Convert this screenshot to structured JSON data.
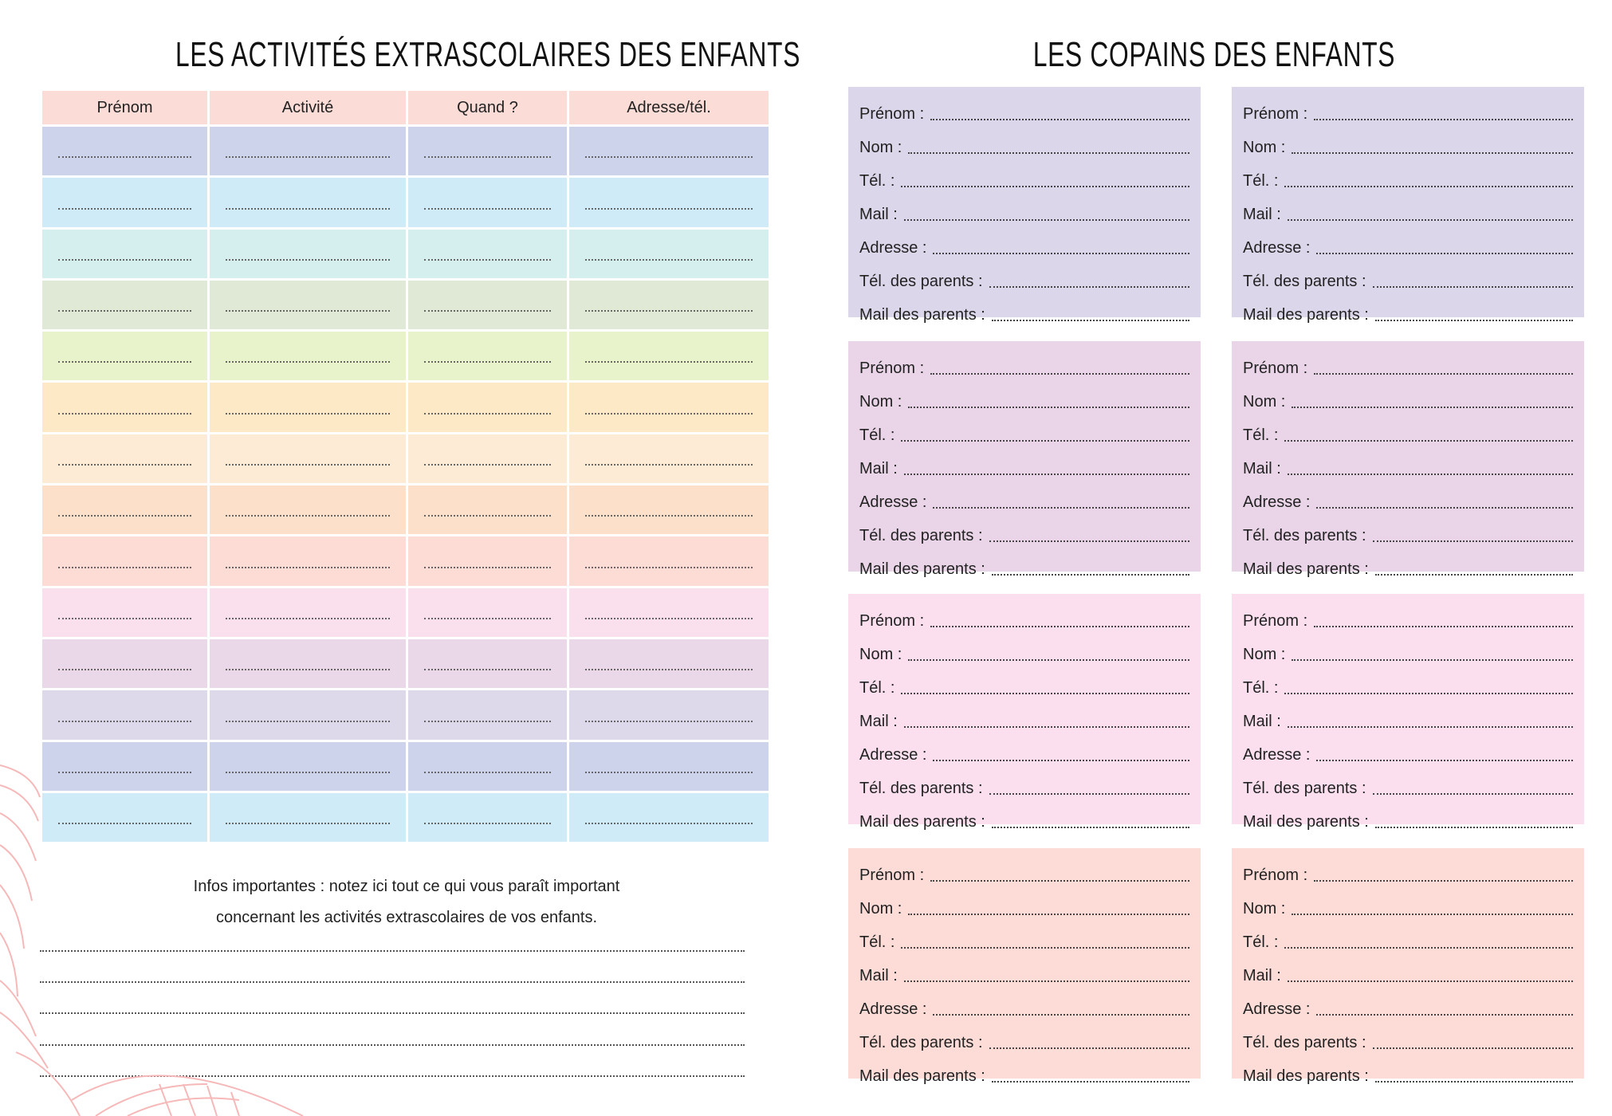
{
  "left_page": {
    "title": "LES ACTIVITÉS EXTRASCOLAIRES DES ENFANTS",
    "table": {
      "headers": [
        "Prénom",
        "Activité",
        "Quand ?",
        "Adresse/tél."
      ],
      "header_color": "#fcdcd7",
      "row_colors": [
        "#cdd3ea",
        "#d0ebf8",
        "#d5eeee",
        "#e0e9d6",
        "#e9f3cb",
        "#fde9c6",
        "#fdebd5",
        "#fde0c9",
        "#fcdcd5",
        "#fadfec",
        "#ead7e8",
        "#ddd8ea",
        "#cdd3ea",
        "#d0ebf8"
      ]
    },
    "infos_line1": "Infos importantes : notez ici tout ce qui vous paraît important",
    "infos_line2": "concernant les activités extrascolaires de vos enfants."
  },
  "right_page": {
    "title": "LES COPAINS DES ENFANTS",
    "fields": [
      "Prénom :",
      "Nom :",
      "Tél. :",
      "Mail :",
      "Adresse :",
      "Tél. des parents :",
      "Mail des parents :"
    ],
    "card_row_colors": [
      "#dcd6ea",
      "#ead5e8",
      "#fbdfee",
      "#fddbd6"
    ]
  },
  "decoration_color": "#f6b8b8"
}
